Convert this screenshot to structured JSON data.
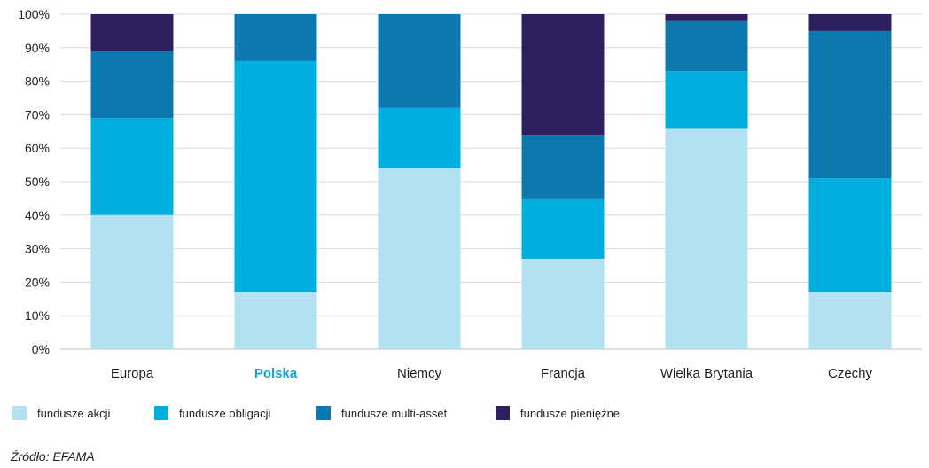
{
  "chart_data": {
    "type": "bar",
    "stacked": true,
    "categories": [
      "Europa",
      "Polska",
      "Niemcy",
      "Francja",
      "Wielka Brytania",
      "Czechy"
    ],
    "highlight_category": "Polska",
    "series": [
      {
        "name": "fundusze akcji",
        "color": "#b2e2f2",
        "values": [
          40,
          17,
          54,
          27,
          66,
          17
        ]
      },
      {
        "name": "fundusze obligacji",
        "color": "#00aee0",
        "values": [
          29,
          69,
          18,
          18,
          17,
          34
        ]
      },
      {
        "name": "fundusze multi-asset",
        "color": "#0b78b0",
        "values": [
          20,
          14,
          28,
          19,
          15,
          44
        ]
      },
      {
        "name": "fundusze pieniężne",
        "color": "#2e1f5e",
        "values": [
          11,
          0,
          0,
          36,
          2,
          5
        ]
      }
    ],
    "y_ticks": [
      "0%",
      "10%",
      "20%",
      "30%",
      "40%",
      "50%",
      "60%",
      "70%",
      "80%",
      "90%",
      "100%"
    ],
    "ylim": [
      0,
      100
    ],
    "grid": true,
    "legend_position": "bottom-left",
    "title": "",
    "xlabel": "",
    "ylabel": ""
  },
  "source": "Źródło: EFAMA"
}
